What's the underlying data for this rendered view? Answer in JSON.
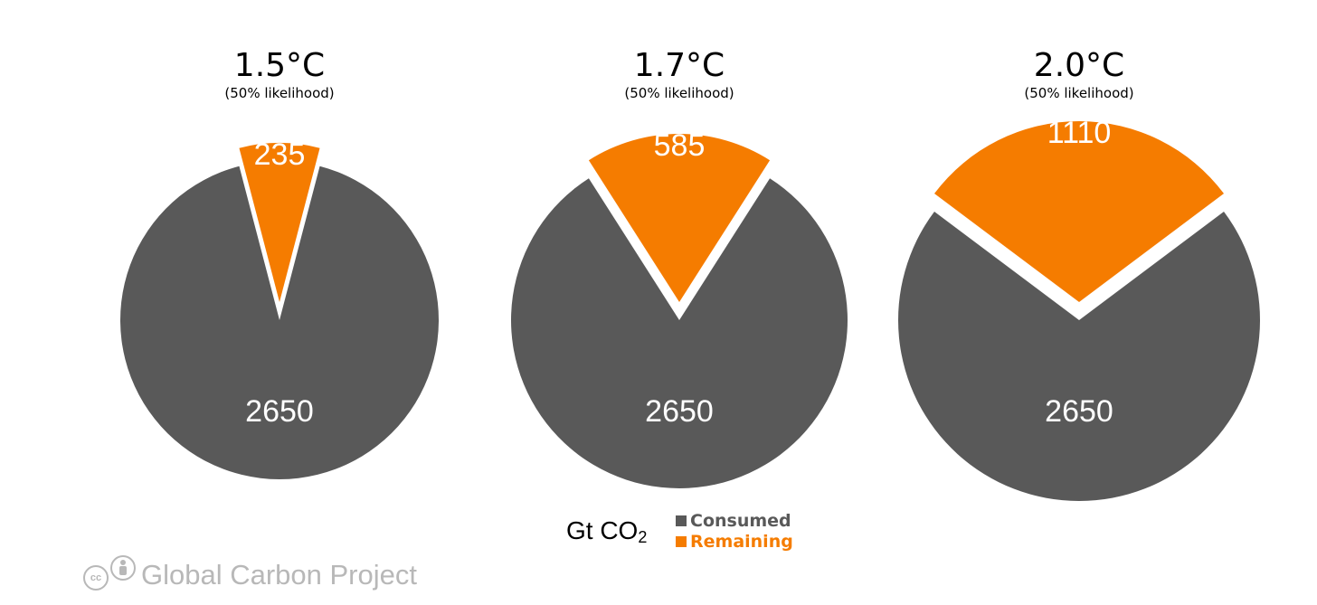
{
  "chart_data": [
    {
      "type": "pie",
      "title": "1.5°C",
      "subtitle": "(50% likelihood)",
      "slices": [
        {
          "name": "Consumed",
          "value": 2650,
          "label": "2650"
        },
        {
          "name": "Remaining",
          "value": 235,
          "label": "235"
        }
      ]
    },
    {
      "type": "pie",
      "title": "1.7°C",
      "subtitle": "(50% likelihood)",
      "slices": [
        {
          "name": "Consumed",
          "value": 2650,
          "label": "2650"
        },
        {
          "name": "Remaining",
          "value": 585,
          "label": "585"
        }
      ]
    },
    {
      "type": "pie",
      "title": "2.0°C",
      "subtitle": "(50% likelihood)",
      "slices": [
        {
          "name": "Consumed",
          "value": 2650,
          "label": "2650"
        },
        {
          "name": "Remaining",
          "value": 1110,
          "label": "1110"
        }
      ]
    }
  ],
  "legend": {
    "unit_main": "Gt CO",
    "unit_sub": "2",
    "items": [
      {
        "label": "Consumed",
        "color": "#595959"
      },
      {
        "label": "Remaining",
        "color": "#f57c00"
      }
    ],
    "placement": "bottom-center"
  },
  "colors": {
    "consumed": "#595959",
    "remaining": "#f57c00"
  },
  "footer": {
    "cc_glyph": "cc",
    "text": "Global Carbon Project",
    "icons": [
      "cc-icon",
      "attribution-icon"
    ]
  }
}
